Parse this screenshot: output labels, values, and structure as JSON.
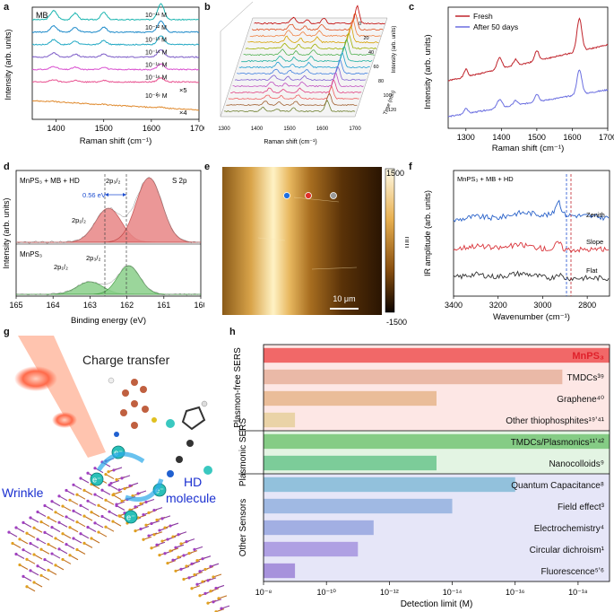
{
  "chart_data": [
    {
      "panel": "a",
      "type": "line",
      "title": "MB",
      "xlabel": "Raman shift (cm⁻¹)",
      "ylabel": "Intensity (arb. units)",
      "xlim": [
        1350,
        1700
      ],
      "xticks": [
        "1400",
        "1500",
        "1600",
        "1700"
      ],
      "peaks": [
        1395,
        1440,
        1500,
        1620
      ],
      "series": [
        {
          "name": "10⁻¹¹ M",
          "color": "#1ab5b0",
          "amp": 1.0,
          "offset": 8
        },
        {
          "name": "10⁻¹² M",
          "color": "#1b89c9",
          "amp": 0.7,
          "offset": 7
        },
        {
          "name": "10⁻¹³ M",
          "color": "#22a9c4",
          "amp": 0.55,
          "offset": 6
        },
        {
          "name": "10⁻¹⁴ M",
          "color": "#7c5bc7",
          "amp": 0.45,
          "offset": 5
        },
        {
          "name": "10⁻¹⁵ M",
          "color": "#d94fcf",
          "amp": 0.35,
          "offset": 4
        },
        {
          "name": "10⁻¹⁶ M",
          "color": "#e8508f",
          "amp": 0.25,
          "offset": 3
        },
        {
          "name": "10⁻¹⁹ M",
          "color": "#e08a2e",
          "amp": 0.05,
          "offset": 1.5
        }
      ],
      "annotations": [
        "×5",
        "×4",
        "⋮"
      ]
    },
    {
      "panel": "b",
      "type": "line",
      "xlabel": "Raman shift (cm⁻¹)",
      "ylabel": "Intensity (arb. units)",
      "zlabel": "Time (min)",
      "xticks": [
        "1300",
        "1400",
        "1500",
        "1600",
        "1700"
      ],
      "zticks": [
        "0",
        "20",
        "40",
        "60",
        "80",
        "100",
        "120"
      ],
      "series_colors": [
        "#c00000",
        "#e05020",
        "#f08040",
        "#d6a000",
        "#a0b000",
        "#50b050",
        "#20b0a0",
        "#20a0d0",
        "#4080e0",
        "#8060d0",
        "#c050c0",
        "#e04080",
        "#f06060",
        "#a06030",
        "#708030"
      ]
    },
    {
      "panel": "c",
      "type": "line",
      "xlabel": "Raman shift (cm⁻¹)",
      "ylabel": "Intensity (arb. units)",
      "xlim": [
        1250,
        1700
      ],
      "xticks": [
        "1300",
        "1400",
        "1500",
        "1600",
        "1700"
      ],
      "series": [
        {
          "name": "Fresh",
          "color": "#c0242c"
        },
        {
          "name": "After 50 days",
          "color": "#6a6ee0"
        }
      ]
    },
    {
      "panel": "d",
      "type": "line",
      "xlabel": "Binding energy (eV)",
      "ylabel": "Intensity (arb. units)",
      "xlim": [
        165,
        160
      ],
      "xticks": [
        "165",
        "164",
        "163",
        "162",
        "161",
        "160"
      ],
      "top_label": "MnPS₃ + MB + HD",
      "top_right_label": "S 2p",
      "bottom_label": "MnPS₃",
      "shift_label": "0.56 eV",
      "peak_labels": [
        "2p₃/₂",
        "2p₁/₂",
        "2p₁/₂",
        "2p₃/₂"
      ]
    },
    {
      "panel": "e",
      "type": "heatmap",
      "colorbar_max": "1500",
      "colorbar_min": "-1500",
      "unit": "nm",
      "scalebar": "10 μm",
      "markers": [
        {
          "color": "#1f6fe0"
        },
        {
          "color": "#e0302a"
        },
        {
          "color": "#9a9a9a"
        }
      ]
    },
    {
      "panel": "f",
      "type": "line",
      "xlabel": "Wavenumber (cm⁻¹)",
      "ylabel": "IR amplitude (arb. units)",
      "xlim": [
        3400,
        2700
      ],
      "xticks": [
        "3400",
        "3200",
        "3000",
        "2800"
      ],
      "title": "MnPS₃ + MB + HD",
      "series": [
        {
          "name": "Zenith",
          "color": "#2a62c9"
        },
        {
          "name": "Slope",
          "color": "#d9343a"
        },
        {
          "name": "Flat",
          "color": "#333333"
        }
      ]
    },
    {
      "panel": "h",
      "type": "bar",
      "orientation": "horizontal",
      "xlabel": "Detection limit (M)",
      "xlim_exp": [
        -8,
        -19
      ],
      "xticks": [
        "10⁻⁸",
        "10⁻¹⁰",
        "10⁻¹²",
        "10⁻¹⁴",
        "10⁻¹⁶",
        "10⁻¹⁸"
      ],
      "categories": [
        "MnPS₃",
        "TMDCs³⁹",
        "Graphene⁴⁰",
        "Other thiophosphites¹⁹ʼ⁴¹",
        "TMDCs/Plasmonics¹¹ʼ⁴²",
        "Nanocolloids⁹",
        "Quantum Capacitance⁸",
        "Field effect³",
        "Electrochemistry⁴",
        "Circular dichroism¹",
        "Fluorescence⁵ʼ⁶"
      ],
      "values_exp": [
        -19,
        -17.5,
        -13.5,
        -9,
        -19,
        -13.5,
        -16,
        -14,
        -11.5,
        -11,
        -9
      ],
      "bar_colors": [
        "#f05a5a",
        "#e8b4a0",
        "#e8b890",
        "#e8d0a0",
        "#7ac87a",
        "#70c890",
        "#88bcd8",
        "#98b4e0",
        "#9aa8e0",
        "#a898e0",
        "#a088d8"
      ],
      "groups": [
        {
          "name": "Plasmon-free SERS",
          "bg": "#fde7e5"
        },
        {
          "name": "Plasmonic SERS",
          "bg": "#e3f4e3"
        },
        {
          "name": "Other Sensors",
          "bg": "#e6e6f8"
        }
      ]
    }
  ],
  "panel_g": {
    "title": "Charge transfer",
    "wrinkle": "Wrinkle",
    "hd": "HD",
    "molecule": "molecule",
    "electron": "e⁻"
  },
  "labels": {
    "a": "a",
    "b": "b",
    "c": "c",
    "d": "d",
    "e": "e",
    "f": "f",
    "g": "g",
    "h": "h"
  }
}
